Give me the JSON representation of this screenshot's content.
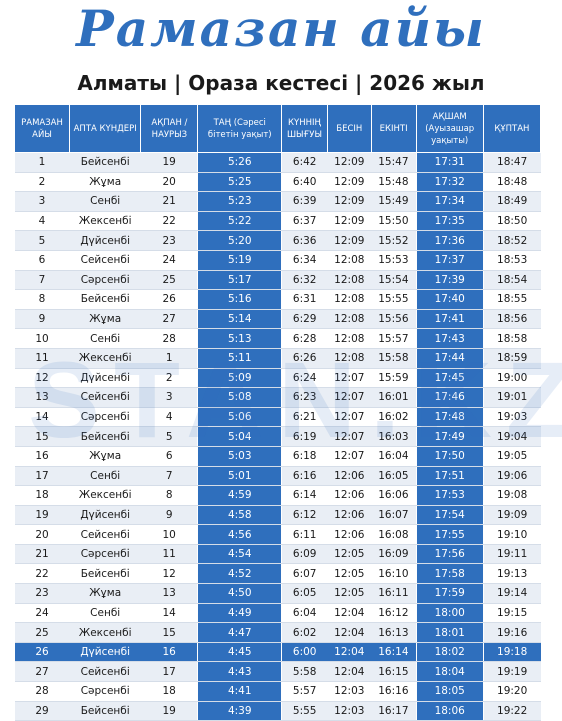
{
  "header": {
    "title": "Рамазан айы",
    "subtitle": "Алматы | Ораза кестесі | 2026 жыл"
  },
  "watermark": "STAN.KZ",
  "columns": {
    "c0": "РАМАЗАН АЙЫ",
    "c1": "АПТА КҮНДЕРІ",
    "c2": "АҚПАН / НАУРЫЗ",
    "c3": "ТАҢ (Сәресі бітетін уақыт)",
    "c4": "КҮННІҢ ШЫҒУЫ",
    "c5": "БЕСІН",
    "c6": "ЕКІНТІ",
    "c7": "АҚШАМ (Ауызашар уақыты)",
    "c8": "ҚҰПТАН"
  },
  "rows": [
    [
      "1",
      "Бейсенбі",
      "19",
      "5:26",
      "6:42",
      "12:09",
      "15:47",
      "17:31",
      "18:47"
    ],
    [
      "2",
      "Жұма",
      "20",
      "5:25",
      "6:40",
      "12:09",
      "15:48",
      "17:32",
      "18:48"
    ],
    [
      "3",
      "Сенбі",
      "21",
      "5:23",
      "6:39",
      "12:09",
      "15:49",
      "17:34",
      "18:49"
    ],
    [
      "4",
      "Жексенбі",
      "22",
      "5:22",
      "6:37",
      "12:09",
      "15:50",
      "17:35",
      "18:50"
    ],
    [
      "5",
      "Дүйсенбі",
      "23",
      "5:20",
      "6:36",
      "12:09",
      "15:52",
      "17:36",
      "18:52"
    ],
    [
      "6",
      "Сейсенбі",
      "24",
      "5:19",
      "6:34",
      "12:08",
      "15:53",
      "17:37",
      "18:53"
    ],
    [
      "7",
      "Сәрсенбі",
      "25",
      "5:17",
      "6:32",
      "12:08",
      "15:54",
      "17:39",
      "18:54"
    ],
    [
      "8",
      "Бейсенбі",
      "26",
      "5:16",
      "6:31",
      "12:08",
      "15:55",
      "17:40",
      "18:55"
    ],
    [
      "9",
      "Жұма",
      "27",
      "5:14",
      "6:29",
      "12:08",
      "15:56",
      "17:41",
      "18:56"
    ],
    [
      "10",
      "Сенбі",
      "28",
      "5:13",
      "6:28",
      "12:08",
      "15:57",
      "17:43",
      "18:58"
    ],
    [
      "11",
      "Жексенбі",
      "1",
      "5:11",
      "6:26",
      "12:08",
      "15:58",
      "17:44",
      "18:59"
    ],
    [
      "12",
      "Дүйсенбі",
      "2",
      "5:09",
      "6:24",
      "12:07",
      "15:59",
      "17:45",
      "19:00"
    ],
    [
      "13",
      "Сейсенбі",
      "3",
      "5:08",
      "6:23",
      "12:07",
      "16:01",
      "17:46",
      "19:01"
    ],
    [
      "14",
      "Сәрсенбі",
      "4",
      "5:06",
      "6:21",
      "12:07",
      "16:02",
      "17:48",
      "19:03"
    ],
    [
      "15",
      "Бейсенбі",
      "5",
      "5:04",
      "6:19",
      "12:07",
      "16:03",
      "17:49",
      "19:04"
    ],
    [
      "16",
      "Жұма",
      "6",
      "5:03",
      "6:18",
      "12:07",
      "16:04",
      "17:50",
      "19:05"
    ],
    [
      "17",
      "Сенбі",
      "7",
      "5:01",
      "6:16",
      "12:06",
      "16:05",
      "17:51",
      "19:06"
    ],
    [
      "18",
      "Жексенбі",
      "8",
      "4:59",
      "6:14",
      "12:06",
      "16:06",
      "17:53",
      "19:08"
    ],
    [
      "19",
      "Дүйсенбі",
      "9",
      "4:58",
      "6:12",
      "12:06",
      "16:07",
      "17:54",
      "19:09"
    ],
    [
      "20",
      "Сейсенбі",
      "10",
      "4:56",
      "6:11",
      "12:06",
      "16:08",
      "17:55",
      "19:10"
    ],
    [
      "21",
      "Сәрсенбі",
      "11",
      "4:54",
      "6:09",
      "12:05",
      "16:09",
      "17:56",
      "19:11"
    ],
    [
      "22",
      "Бейсенбі",
      "12",
      "4:52",
      "6:07",
      "12:05",
      "16:10",
      "17:58",
      "19:13"
    ],
    [
      "23",
      "Жұма",
      "13",
      "4:50",
      "6:05",
      "12:05",
      "16:11",
      "17:59",
      "19:14"
    ],
    [
      "24",
      "Сенбі",
      "14",
      "4:49",
      "6:04",
      "12:04",
      "16:12",
      "18:00",
      "19:15"
    ],
    [
      "25",
      "Жексенбі",
      "15",
      "4:47",
      "6:02",
      "12:04",
      "16:13",
      "18:01",
      "19:16"
    ],
    [
      "26",
      "Дүйсенбі",
      "16",
      "4:45",
      "6:00",
      "12:04",
      "16:14",
      "18:02",
      "19:18"
    ],
    [
      "27",
      "Сейсенбі",
      "17",
      "4:43",
      "5:58",
      "12:04",
      "16:15",
      "18:04",
      "19:19"
    ],
    [
      "28",
      "Сәрсенбі",
      "18",
      "4:41",
      "5:57",
      "12:03",
      "16:16",
      "18:05",
      "19:20"
    ],
    [
      "29",
      "Бейсенбі",
      "19",
      "4:39",
      "5:55",
      "12:03",
      "16:17",
      "18:06",
      "19:22"
    ]
  ],
  "highlight_row": "26",
  "colors": {
    "accent": "#2f6fbd",
    "stripe": "#e9eef5"
  }
}
